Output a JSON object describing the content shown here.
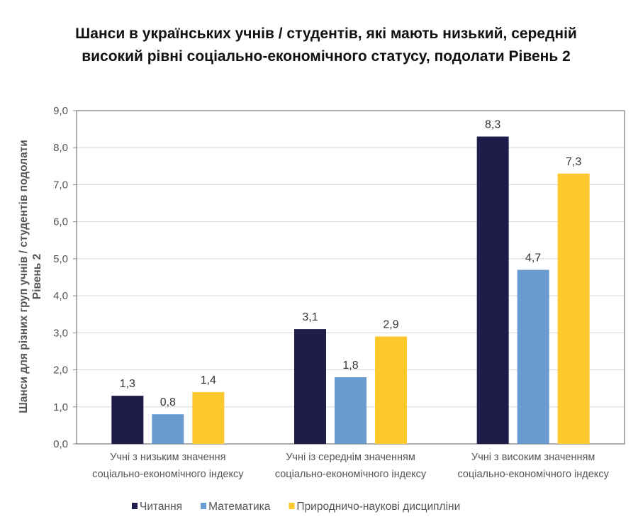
{
  "chart_data": {
    "type": "bar",
    "title_lines": [
      "Шанси в українських учнів / студентів, які мають низький, середній",
      "високий рівні соціально-економічного статусу, подолати Рівень 2"
    ],
    "ylabel_lines": [
      "Шанси для різних груп учнів / студентів подолати",
      "Рівень 2"
    ],
    "xlabel": "",
    "ylim": [
      0,
      9
    ],
    "yticks": [
      "0,0",
      "1,0",
      "2,0",
      "3,0",
      "4,0",
      "5,0",
      "6,0",
      "7,0",
      "8,0",
      "9,0"
    ],
    "grid": true,
    "legend_position": "bottom",
    "categories": [
      [
        "Учні з низьким значення",
        "соціально-економічного індексу"
      ],
      [
        "Учні із середнім значенням",
        "соціально-економічного індексу"
      ],
      [
        "Учні з високим значенням",
        "соціально-економічного індексу"
      ]
    ],
    "series": [
      {
        "name": "Читання",
        "color": "#1e1d4a",
        "values": [
          1.3,
          3.1,
          8.3
        ],
        "labels": [
          "1,3",
          "3,1",
          "8,3"
        ]
      },
      {
        "name": "Математика",
        "color": "#6a9bd0",
        "values": [
          0.8,
          1.8,
          4.7
        ],
        "labels": [
          "0,8",
          "1,8",
          "4,7"
        ]
      },
      {
        "name": "Природничо-наукові дисципліни",
        "color": "#fcc82e",
        "values": [
          1.4,
          2.9,
          7.3
        ],
        "labels": [
          "1,4",
          "2,9",
          "7,3"
        ]
      }
    ]
  }
}
